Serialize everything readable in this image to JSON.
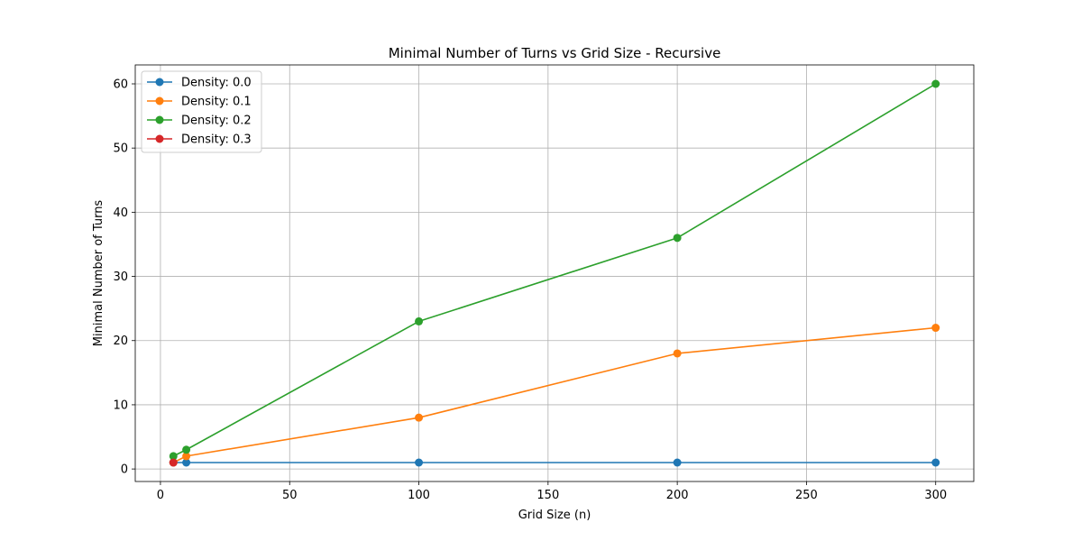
{
  "chart_data": {
    "type": "line",
    "title": "Minimal Number of Turns vs Grid Size - Recursive",
    "xlabel": "Grid Size (n)",
    "ylabel": "Minimal Number of Turns",
    "xlim": [
      -9.75,
      314.75
    ],
    "ylim": [
      -1.95,
      62.95
    ],
    "xticks": [
      0,
      50,
      100,
      150,
      200,
      250,
      300
    ],
    "yticks": [
      0,
      10,
      20,
      30,
      40,
      50,
      60
    ],
    "grid": true,
    "legend_position": "top-left",
    "series": [
      {
        "name": "Density: 0.0",
        "color": "#1f77b4",
        "x": [
          5,
          10,
          100,
          200,
          300
        ],
        "y": [
          1,
          1,
          1,
          1,
          1
        ]
      },
      {
        "name": "Density: 0.1",
        "color": "#ff7f0e",
        "x": [
          5,
          10,
          100,
          200,
          300
        ],
        "y": [
          1,
          2,
          8,
          18,
          22
        ]
      },
      {
        "name": "Density: 0.2",
        "color": "#2ca02c",
        "x": [
          5,
          10,
          100,
          200,
          300
        ],
        "y": [
          2,
          3,
          23,
          36,
          60
        ]
      },
      {
        "name": "Density: 0.3",
        "color": "#d62728",
        "x": [
          5
        ],
        "y": [
          1
        ]
      }
    ]
  }
}
